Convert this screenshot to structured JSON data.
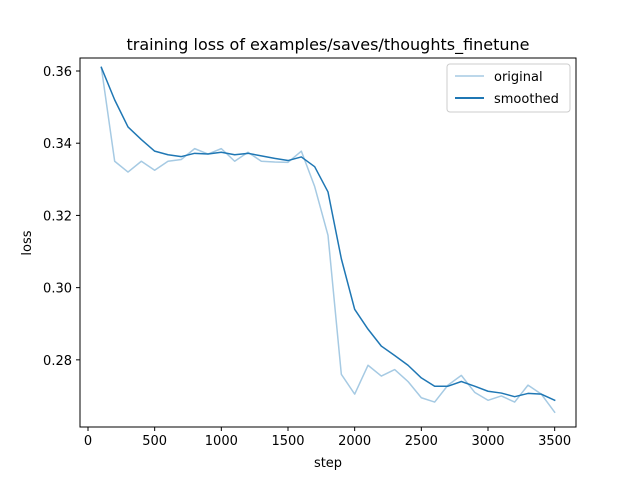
{
  "chart_data": {
    "type": "line",
    "title": "training loss of examples/saves/thoughts_finetune",
    "xlabel": "step",
    "ylabel": "loss",
    "xlim": [
      -60,
      3660
    ],
    "ylim": [
      0.2614,
      0.3636
    ],
    "x_ticks": [
      {
        "value": 0,
        "label": "0"
      },
      {
        "value": 500,
        "label": "500"
      },
      {
        "value": 1000,
        "label": "1000"
      },
      {
        "value": 1500,
        "label": "1500"
      },
      {
        "value": 2000,
        "label": "2000"
      },
      {
        "value": 2500,
        "label": "2500"
      },
      {
        "value": 3000,
        "label": "3000"
      },
      {
        "value": 3500,
        "label": "3500"
      }
    ],
    "y_ticks": [
      {
        "value": 0.28,
        "label": "0.28"
      },
      {
        "value": 0.3,
        "label": "0.30"
      },
      {
        "value": 0.32,
        "label": "0.32"
      },
      {
        "value": 0.34,
        "label": "0.34"
      },
      {
        "value": 0.36,
        "label": "0.36"
      }
    ],
    "grid": false,
    "legend_position": "top-right",
    "x": [
      100,
      200,
      300,
      400,
      500,
      600,
      700,
      800,
      900,
      1000,
      1100,
      1200,
      1300,
      1400,
      1500,
      1600,
      1700,
      1800,
      1900,
      2000,
      2100,
      2200,
      2300,
      2400,
      2500,
      2600,
      2700,
      2800,
      2900,
      3000,
      3100,
      3200,
      3300,
      3400,
      3500
    ],
    "series": [
      {
        "name": "original",
        "color": "#a6cae3",
        "values": [
          0.361,
          0.335,
          0.332,
          0.335,
          0.3325,
          0.335,
          0.3355,
          0.3385,
          0.337,
          0.3385,
          0.335,
          0.3375,
          0.335,
          0.3348,
          0.3347,
          0.3378,
          0.328,
          0.3145,
          0.276,
          0.2705,
          0.2785,
          0.2755,
          0.2773,
          0.274,
          0.2695,
          0.2683,
          0.273,
          0.2757,
          0.271,
          0.2688,
          0.27,
          0.2683,
          0.273,
          0.2705,
          0.2655
        ]
      },
      {
        "name": "smoothed",
        "color": "#1f77b4",
        "values": [
          0.361,
          0.352,
          0.3445,
          0.341,
          0.3378,
          0.3368,
          0.3363,
          0.3372,
          0.337,
          0.3375,
          0.3368,
          0.3372,
          0.3365,
          0.3358,
          0.3352,
          0.3362,
          0.3335,
          0.3265,
          0.308,
          0.294,
          0.2885,
          0.2838,
          0.2812,
          0.2785,
          0.275,
          0.2727,
          0.2727,
          0.274,
          0.2727,
          0.2713,
          0.2708,
          0.2698,
          0.2707,
          0.2705,
          0.2688
        ]
      }
    ]
  }
}
